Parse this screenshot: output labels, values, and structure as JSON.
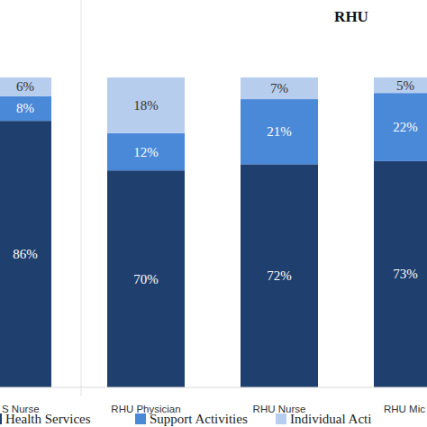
{
  "chart_data": {
    "type": "bar",
    "title": "RHU",
    "stacked": true,
    "data_labels": true,
    "tick_labels": "x",
    "ylim": [
      0,
      100
    ],
    "categories": [
      "S Nurse",
      "RHU Physician",
      "RHU Nurse",
      "RHU Mic"
    ],
    "series": [
      {
        "name": "Health Services",
        "color": "#1f3f6e",
        "values": [
          86,
          70,
          72,
          73
        ],
        "value_labels": [
          "86%",
          "70%",
          "72%",
          "73%"
        ]
      },
      {
        "name": "Support Activities",
        "color": "#4a88d8",
        "values": [
          8,
          12,
          21,
          22
        ],
        "value_labels": [
          "8%",
          "12%",
          "21%",
          "22%"
        ]
      },
      {
        "name": "Individual Acti",
        "color": "#b7cdee",
        "values": [
          6,
          18,
          7,
          5
        ],
        "value_labels": [
          "6%",
          "18%",
          "7%",
          "5%"
        ]
      }
    ]
  }
}
